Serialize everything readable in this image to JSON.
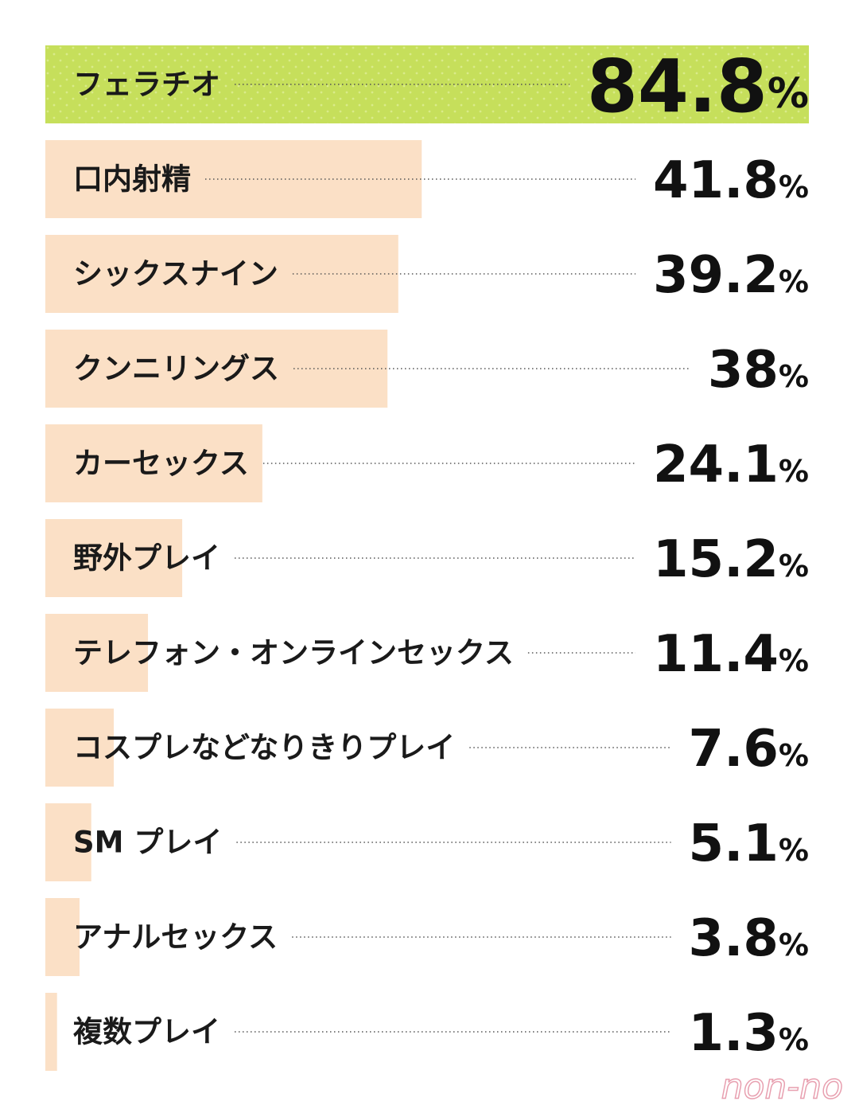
{
  "chart_data": {
    "type": "bar",
    "orientation": "horizontal",
    "categories": [
      "フェラチオ",
      "口内射精",
      "シックスナイン",
      "クンニリングス",
      "カーセックス",
      "野外プレイ",
      "テレフォン・オンラインセックス",
      "コスプレなどなりきりプレイ",
      "SM プレイ",
      "アナルセックス",
      "複数プレイ"
    ],
    "values": [
      84.8,
      41.8,
      39.2,
      38,
      24.1,
      15.2,
      11.4,
      7.6,
      5.1,
      3.8,
      1.3
    ],
    "value_labels": [
      "84.8%",
      "41.8%",
      "39.2%",
      "38%",
      "24.1%",
      "15.2%",
      "11.4%",
      "7.6%",
      "5.1%",
      "3.8%",
      "1.3%"
    ],
    "colors": [
      "#c6df5b",
      "#fbe0c6",
      "#fbe0c6",
      "#fbe0c6",
      "#fbe0c6",
      "#fbe0c6",
      "#fbe0c6",
      "#fbe0c6",
      "#fbe0c6",
      "#fbe0c6",
      "#fbe0c6"
    ],
    "watermark": "non-no"
  }
}
